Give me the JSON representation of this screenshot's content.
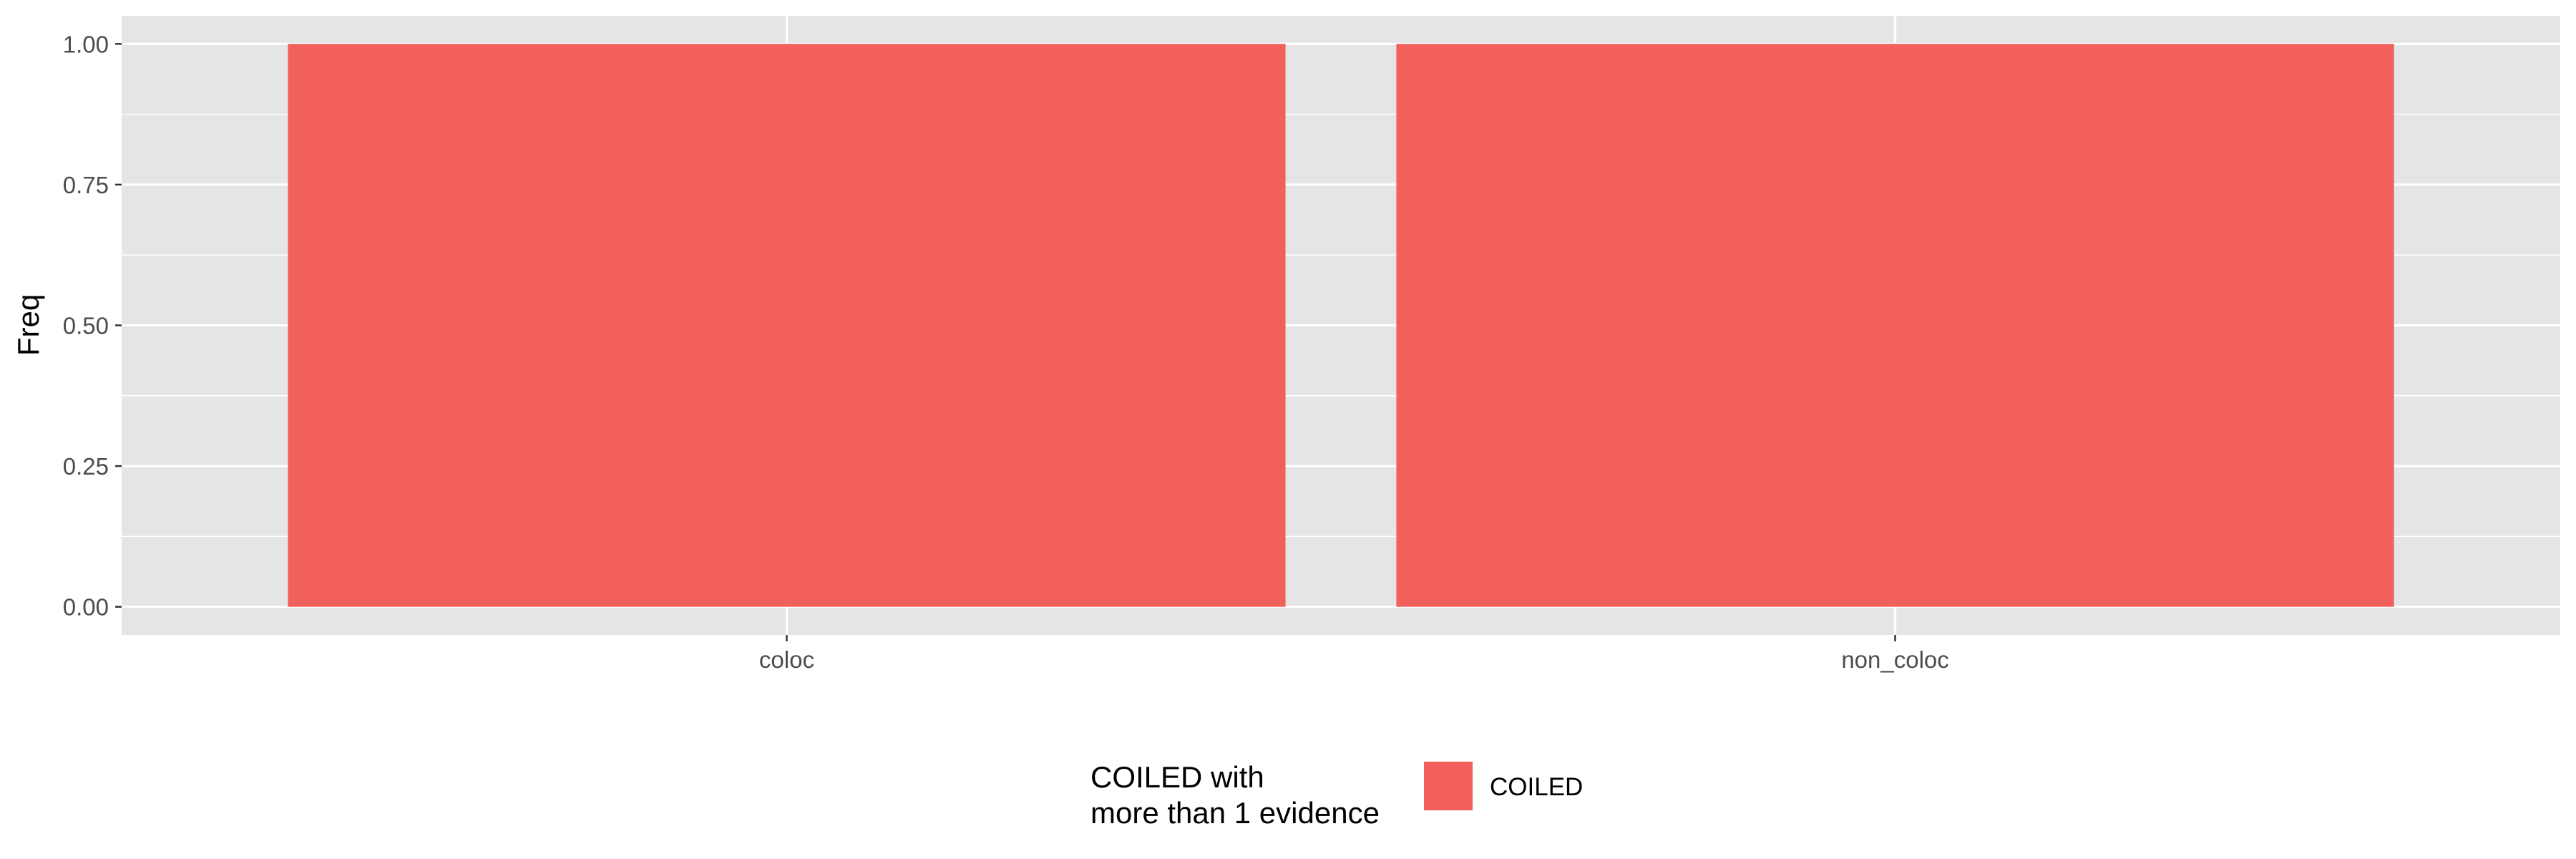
{
  "chart_data": {
    "type": "bar",
    "categories": [
      "coloc",
      "non_coloc"
    ],
    "series": [
      {
        "name": "COILED",
        "values": [
          1.0,
          1.0
        ],
        "color": "#F2605C"
      }
    ],
    "xlabel": "",
    "ylabel": "Freq",
    "ylim": [
      -0.05,
      1.05
    ],
    "yticks": [
      0.0,
      0.25,
      0.5,
      0.75,
      1.0
    ],
    "ytick_labels": [
      "0.00",
      "0.25",
      "0.50",
      "0.75",
      "1.00"
    ],
    "grid": true,
    "panel_color": "#E5E5E5",
    "grid_color": "#FFFFFF",
    "legend": {
      "position": "bottom",
      "title_lines": [
        "COILED with",
        "more than 1 evidence"
      ],
      "entries": [
        {
          "label": "COILED",
          "color": "#F2605C"
        }
      ]
    }
  }
}
